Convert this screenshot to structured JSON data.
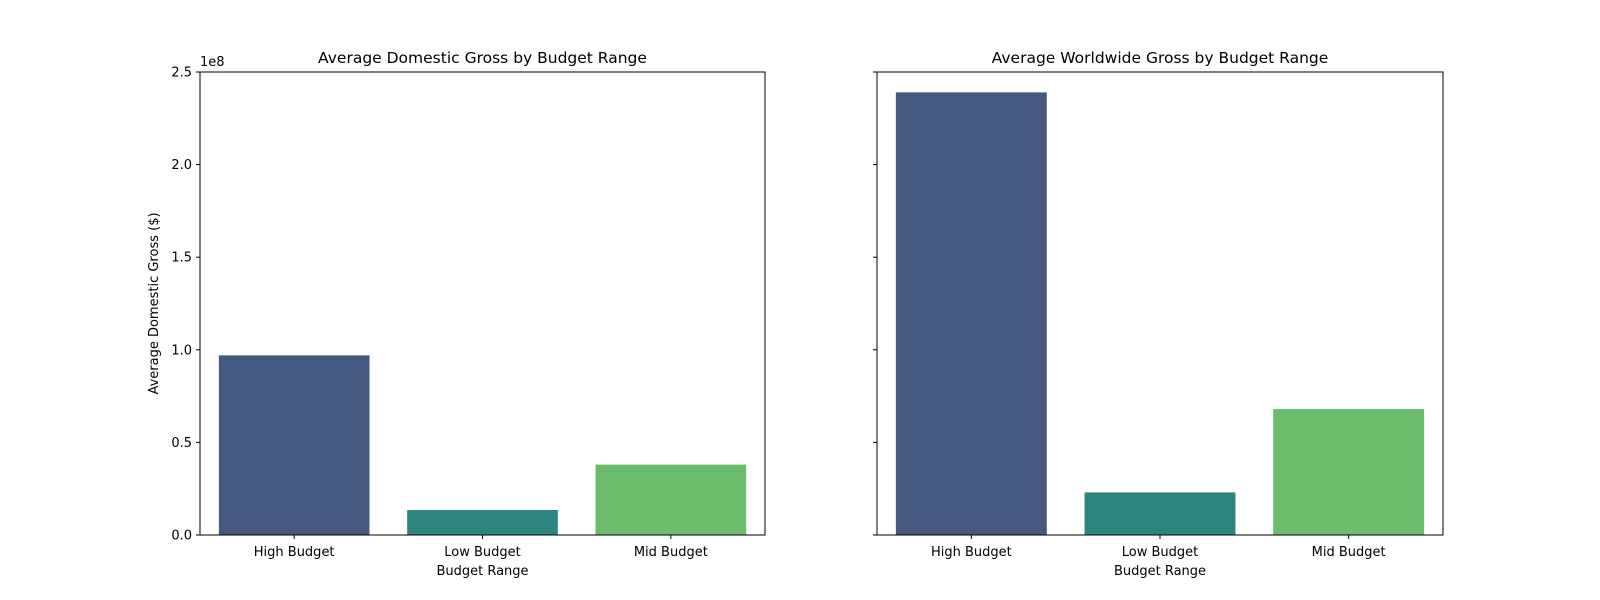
{
  "chart_data": [
    {
      "type": "bar",
      "title": "Average Domestic Gross by Budget Range",
      "xlabel": "Budget Range",
      "ylabel": "Average Domestic Gross ($)",
      "categories": [
        "High Budget",
        "Low Budget",
        "Mid Budget"
      ],
      "values": [
        97000000,
        13500000,
        38000000
      ],
      "colors": [
        "#455880",
        "#2e8580",
        "#6bbd6d"
      ],
      "ylim": [
        0,
        250000000
      ],
      "yticks": [
        0,
        50000000,
        100000000,
        150000000,
        200000000,
        250000000
      ],
      "ytick_labels": [
        "0.0",
        "0.5",
        "1.0",
        "1.5",
        "2.0",
        "2.5"
      ],
      "y_offset_label": "1e8",
      "grid": false
    },
    {
      "type": "bar",
      "title": "Average Worldwide Gross by Budget Range",
      "xlabel": "Budget Range",
      "ylabel": "",
      "categories": [
        "High Budget",
        "Low Budget",
        "Mid Budget"
      ],
      "values": [
        239000000,
        23000000,
        68000000
      ],
      "colors": [
        "#455880",
        "#2e8580",
        "#6bbd6d"
      ],
      "ylim": [
        0,
        250000000
      ],
      "yticks": [
        0,
        50000000,
        100000000,
        150000000,
        200000000,
        250000000
      ],
      "ytick_labels": [
        "",
        "",
        "",
        "",
        "",
        ""
      ],
      "y_offset_label": "",
      "grid": false
    }
  ]
}
